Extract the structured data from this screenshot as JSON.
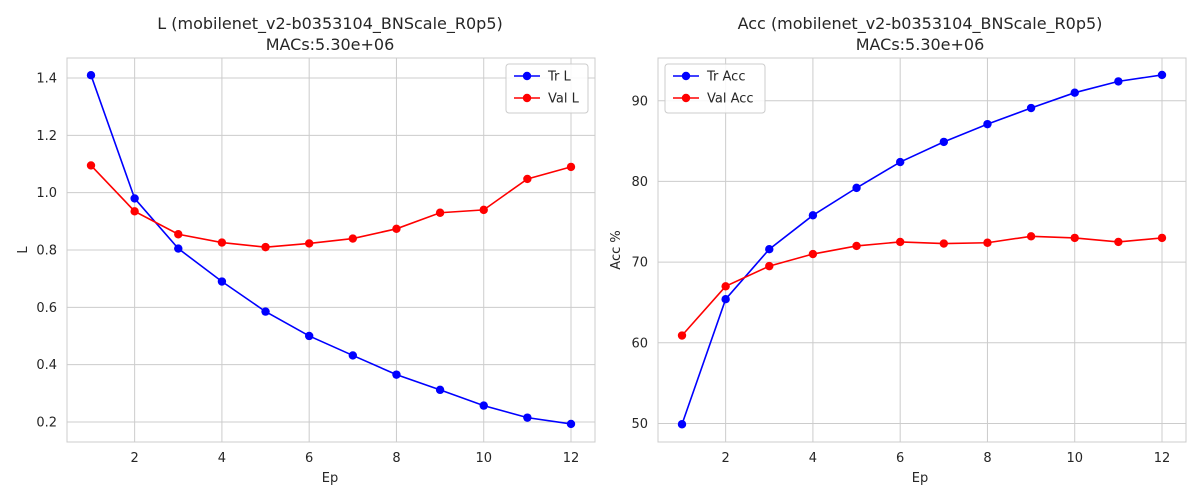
{
  "chart_data": [
    {
      "type": "line",
      "title": "L (mobilenet_v2-b0353104_BNScale_R0p5)",
      "subtitle": "MACs:5.30e+06",
      "xlabel": "Ep",
      "ylabel": "L",
      "x": [
        1,
        2,
        3,
        4,
        5,
        6,
        7,
        8,
        9,
        10,
        11,
        12
      ],
      "xticks": [
        "2",
        "4",
        "6",
        "8",
        "10",
        "12"
      ],
      "yticks": [
        "0.2",
        "0.4",
        "0.6",
        "0.8",
        "1.0",
        "1.2",
        "1.4"
      ],
      "xlim": [
        0.45,
        12.55
      ],
      "ylim": [
        0.13,
        1.47
      ],
      "grid": true,
      "legend_position": "top-right",
      "series": [
        {
          "name": "Tr L",
          "color": "#0000ff",
          "values": [
            1.41,
            0.98,
            0.805,
            0.69,
            0.585,
            0.5,
            0.432,
            0.365,
            0.312,
            0.257,
            0.215,
            0.193
          ]
        },
        {
          "name": "Val L",
          "color": "#ff0000",
          "values": [
            1.095,
            0.935,
            0.855,
            0.826,
            0.81,
            0.823,
            0.84,
            0.874,
            0.93,
            0.94,
            1.048,
            1.09
          ]
        }
      ]
    },
    {
      "type": "line",
      "title": "Acc (mobilenet_v2-b0353104_BNScale_R0p5)",
      "subtitle": "MACs:5.30e+06",
      "xlabel": "Ep",
      "ylabel": "Acc %",
      "x": [
        1,
        2,
        3,
        4,
        5,
        6,
        7,
        8,
        9,
        10,
        11,
        12
      ],
      "xticks": [
        "2",
        "4",
        "6",
        "8",
        "10",
        "12"
      ],
      "yticks": [
        "50",
        "60",
        "70",
        "80",
        "90"
      ],
      "xlim": [
        0.45,
        12.55
      ],
      "ylim": [
        47.7,
        95.3
      ],
      "grid": true,
      "legend_position": "top-left",
      "series": [
        {
          "name": "Tr Acc",
          "color": "#0000ff",
          "values": [
            49.9,
            65.4,
            71.6,
            75.8,
            79.2,
            82.4,
            84.9,
            87.1,
            89.1,
            91.0,
            92.4,
            93.2
          ]
        },
        {
          "name": "Val Acc",
          "color": "#ff0000",
          "values": [
            60.9,
            67.0,
            69.5,
            71.0,
            72.0,
            72.5,
            72.3,
            72.4,
            73.2,
            73.0,
            72.5,
            73.0
          ]
        }
      ]
    }
  ]
}
